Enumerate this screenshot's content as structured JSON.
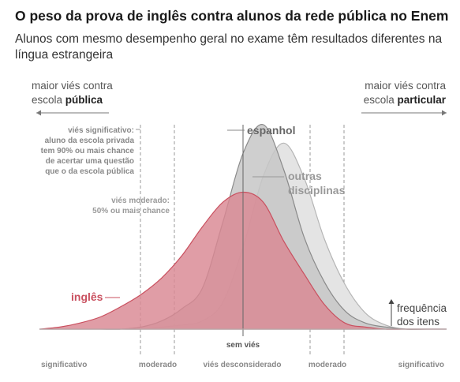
{
  "title": "O peso da prova de inglês contra alunos da rede pública no Enem",
  "subtitle": "Alunos com mesmo desempenho geral no exame têm resultados diferentes na língua estrangeira",
  "left_label": {
    "prefix": "maior viés contra",
    "line2_prefix": "escola ",
    "emphasis": "pública"
  },
  "right_label": {
    "prefix": "maior viés contra",
    "line2_prefix": "escola ",
    "emphasis": "particular"
  },
  "annotation_significant": [
    "viés significativo:",
    "aluno da escola privada",
    "tem 90% ou mais chance",
    "de acertar uma questão",
    "que o da escola pública"
  ],
  "annotation_moderate": [
    "viés moderado:",
    "50% ou mais chance"
  ],
  "y_hint": [
    "frequência",
    "dos itens"
  ],
  "center_label": "sem viés",
  "colors": {
    "ingles": "#c9505f",
    "espanhol": "#8a8a8a",
    "outras": "#b5b5b5",
    "dashed": "#999999",
    "axis": "#bbbbbb"
  },
  "chart_data": {
    "type": "area",
    "x": [
      -5,
      -4.5,
      -4,
      -3.5,
      -3,
      -2.5,
      -2,
      -1.5,
      -1,
      -0.5,
      0,
      0.5,
      1,
      1.5,
      2,
      2.5,
      3,
      3.5,
      4,
      4.5,
      5
    ],
    "series": [
      {
        "name": "inglês",
        "values": [
          0.0,
          0.01,
          0.03,
          0.06,
          0.11,
          0.17,
          0.25,
          0.36,
          0.5,
          0.62,
          0.67,
          0.62,
          0.43,
          0.27,
          0.12,
          0.03,
          0.01,
          0.0,
          0.0,
          0.0,
          0.0
        ]
      },
      {
        "name": "espanhol",
        "values": [
          0.0,
          0.0,
          0.0,
          0.0,
          0.0,
          0.01,
          0.04,
          0.1,
          0.2,
          0.52,
          0.86,
          1.0,
          0.78,
          0.45,
          0.23,
          0.09,
          0.03,
          0.01,
          0.0,
          0.0,
          0.0
        ]
      },
      {
        "name": "outras disciplinas",
        "values": [
          0.0,
          0.0,
          0.0,
          0.0,
          0.0,
          0.0,
          0.01,
          0.02,
          0.04,
          0.13,
          0.4,
          0.75,
          0.91,
          0.74,
          0.44,
          0.22,
          0.08,
          0.02,
          0.0,
          0.0,
          0.0
        ]
      }
    ],
    "x_categories": [
      "significativo",
      "moderado",
      "viés desconsiderado",
      "moderado",
      "significativo"
    ]
  }
}
